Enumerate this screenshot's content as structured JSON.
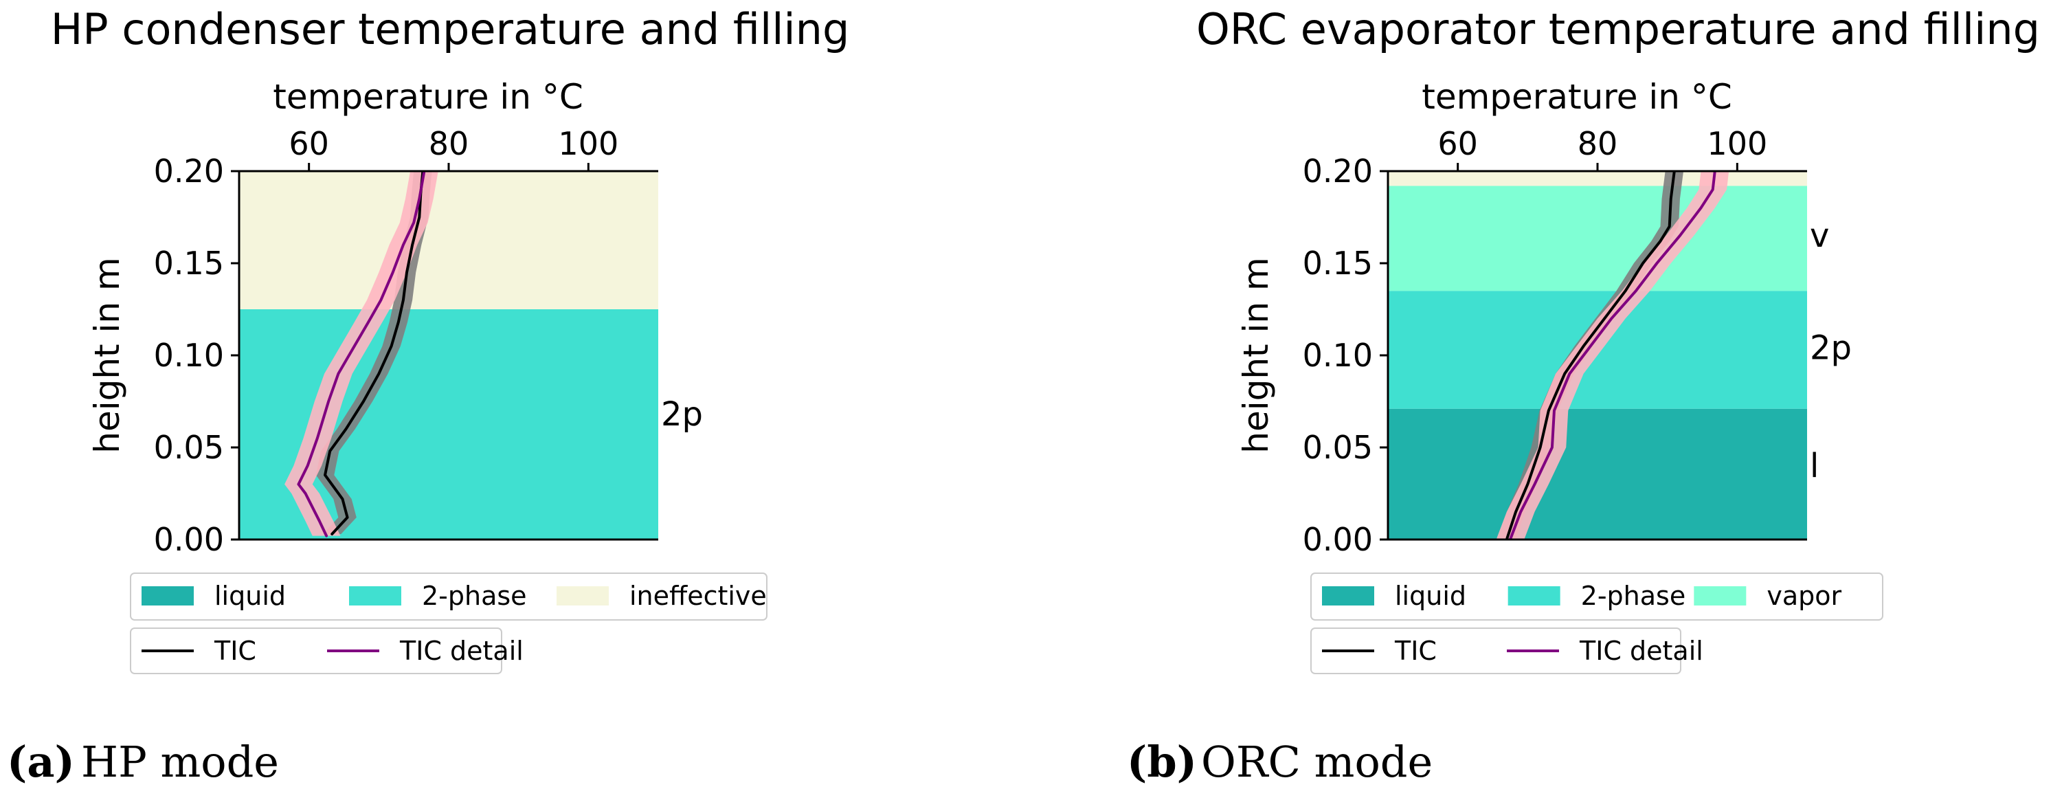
{
  "chart_data": [
    {
      "type": "line",
      "title": "HP condenser temperature and filling",
      "xlabel": "temperature in °C",
      "ylabel": "height in m",
      "xlim": [
        50,
        110
      ],
      "ylim": [
        0.0,
        0.2
      ],
      "xticks": [
        60,
        80,
        100
      ],
      "xtick_labels": [
        "60",
        "80",
        "100"
      ],
      "yticks": [
        0.0,
        0.05,
        0.1,
        0.15,
        0.2
      ],
      "ytick_labels": [
        "0.00",
        "0.05",
        "0.10",
        "0.15",
        "0.20"
      ],
      "x_axis_position": "top",
      "zones": [
        {
          "name": "2-phase",
          "y0": 0.0,
          "y1": 0.125,
          "color": "#40e0d0"
        },
        {
          "name": "ineffective",
          "y0": 0.125,
          "y1": 0.2,
          "color": "#f5f5dc"
        }
      ],
      "zone_labels": [
        {
          "text": "2p",
          "y": 0.068
        }
      ],
      "series": [
        {
          "name": "TIC",
          "color": "#000000",
          "band_color": "#808080",
          "band_halfwidth": 1.3,
          "points": [
            [
              63.3,
              0.003
            ],
            [
              65.5,
              0.012
            ],
            [
              64.8,
              0.022
            ],
            [
              62.3,
              0.035
            ],
            [
              63.0,
              0.048
            ],
            [
              65.3,
              0.06
            ],
            [
              67.8,
              0.075
            ],
            [
              70.0,
              0.09
            ],
            [
              71.8,
              0.105
            ],
            [
              72.8,
              0.118
            ],
            [
              73.5,
              0.13
            ],
            [
              74.0,
              0.145
            ],
            [
              74.8,
              0.16
            ],
            [
              75.8,
              0.175
            ],
            [
              76.0,
              0.188
            ],
            [
              76.3,
              0.2
            ]
          ]
        },
        {
          "name": "TIC detail",
          "color": "#800080",
          "band_color": "#ffb6c1",
          "band_halfwidth": 2.0,
          "points": [
            [
              62.5,
              0.002
            ],
            [
              61.5,
              0.01
            ],
            [
              59.5,
              0.025
            ],
            [
              58.5,
              0.03
            ],
            [
              59.8,
              0.04
            ],
            [
              61.2,
              0.055
            ],
            [
              62.8,
              0.075
            ],
            [
              64.2,
              0.09
            ],
            [
              66.5,
              0.105
            ],
            [
              68.5,
              0.118
            ],
            [
              70.3,
              0.13
            ],
            [
              72.0,
              0.145
            ],
            [
              73.5,
              0.16
            ],
            [
              75.0,
              0.172
            ],
            [
              75.8,
              0.185
            ],
            [
              76.5,
              0.2
            ]
          ]
        }
      ],
      "legend_zones": [
        {
          "label": "liquid",
          "color": "#20b2aa"
        },
        {
          "label": "2-phase",
          "color": "#40e0d0"
        },
        {
          "label": "ineffective",
          "color": "#f5f5dc"
        }
      ],
      "legend_lines": [
        {
          "label": "TIC",
          "color": "#000000"
        },
        {
          "label": "TIC detail",
          "color": "#800080"
        }
      ],
      "caption_letter": "(a)",
      "caption_text": "HP mode"
    },
    {
      "type": "line",
      "title": "ORC evaporator temperature and filling",
      "xlabel": "temperature in °C",
      "ylabel": "height in m",
      "xlim": [
        50,
        110
      ],
      "ylim": [
        0.0,
        0.2
      ],
      "xticks": [
        60,
        80,
        100
      ],
      "xtick_labels": [
        "60",
        "80",
        "100"
      ],
      "yticks": [
        0.0,
        0.05,
        0.1,
        0.15,
        0.2
      ],
      "ytick_labels": [
        "0.00",
        "0.05",
        "0.10",
        "0.15",
        "0.20"
      ],
      "x_axis_position": "top",
      "zones": [
        {
          "name": "liquid",
          "y0": 0.0,
          "y1": 0.071,
          "color": "#20b2aa"
        },
        {
          "name": "2-phase",
          "y0": 0.071,
          "y1": 0.135,
          "color": "#40e0d0"
        },
        {
          "name": "vapor",
          "y0": 0.135,
          "y1": 0.192,
          "color": "#7fffd4"
        },
        {
          "name": "ineffective",
          "y0": 0.192,
          "y1": 0.2,
          "color": "#f5f5dc"
        }
      ],
      "zone_labels": [
        {
          "text": "v",
          "y": 0.165
        },
        {
          "text": "2p",
          "y": 0.104
        },
        {
          "text": "l",
          "y": 0.04
        }
      ],
      "series": [
        {
          "name": "TIC",
          "color": "#000000",
          "band_color": "#808080",
          "band_halfwidth": 1.3,
          "points": [
            [
              67.0,
              0.0
            ],
            [
              68.3,
              0.015
            ],
            [
              70.0,
              0.03
            ],
            [
              71.8,
              0.05
            ],
            [
              73.0,
              0.07
            ],
            [
              75.3,
              0.09
            ],
            [
              78.0,
              0.105
            ],
            [
              81.0,
              0.12
            ],
            [
              84.0,
              0.135
            ],
            [
              86.5,
              0.15
            ],
            [
              89.0,
              0.162
            ],
            [
              90.3,
              0.17
            ],
            [
              90.5,
              0.185
            ],
            [
              91.0,
              0.2
            ]
          ]
        },
        {
          "name": "TIC detail",
          "color": "#800080",
          "band_color": "#ffb6c1",
          "band_halfwidth": 2.0,
          "points": [
            [
              67.5,
              0.0
            ],
            [
              69.0,
              0.015
            ],
            [
              71.0,
              0.03
            ],
            [
              73.5,
              0.05
            ],
            [
              73.8,
              0.07
            ],
            [
              76.0,
              0.09
            ],
            [
              79.0,
              0.105
            ],
            [
              82.0,
              0.12
            ],
            [
              85.5,
              0.135
            ],
            [
              88.5,
              0.15
            ],
            [
              91.8,
              0.165
            ],
            [
              94.8,
              0.18
            ],
            [
              96.5,
              0.19
            ],
            [
              96.8,
              0.2
            ]
          ]
        }
      ],
      "legend_zones": [
        {
          "label": "liquid",
          "color": "#20b2aa"
        },
        {
          "label": "2-phase",
          "color": "#40e0d0"
        },
        {
          "label": "vapor",
          "color": "#7fffd4"
        }
      ],
      "legend_lines": [
        {
          "label": "TIC",
          "color": "#000000"
        },
        {
          "label": "TIC detail",
          "color": "#800080"
        }
      ],
      "caption_letter": "(b)",
      "caption_text": "ORC mode"
    }
  ]
}
